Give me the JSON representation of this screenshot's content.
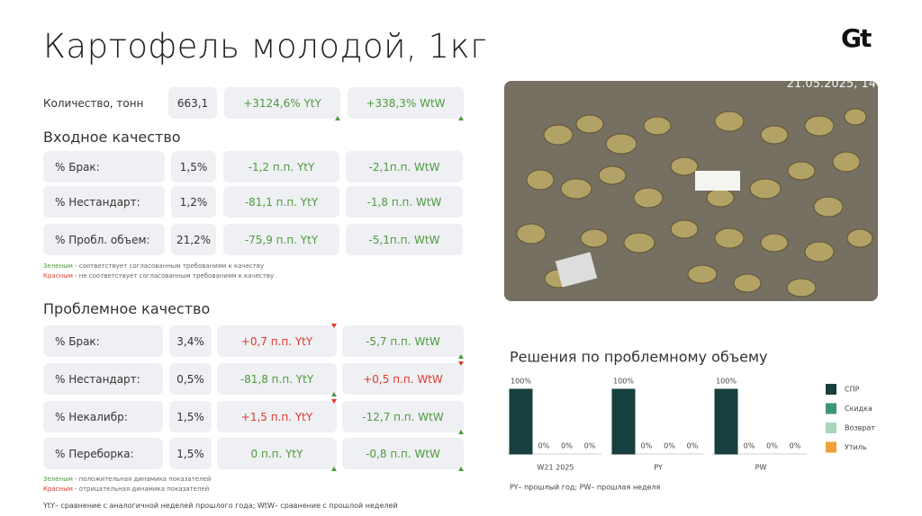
{
  "title": "Картофель молодой, 1кг",
  "logo": "Gt",
  "photo": {
    "timestamp": "21.05.2025, 14"
  },
  "quantity": {
    "label": "Количество, тонн",
    "value": "663,1",
    "yty": {
      "text": "+3124,6% YtY",
      "status": "good",
      "trend": "up"
    },
    "wtw": {
      "text": "+338,3% WtW",
      "status": "good",
      "trend": "up"
    }
  },
  "input_quality": {
    "title": "Входное качество",
    "rows": [
      {
        "label": "% Брак:",
        "value": "1,5%",
        "yty": {
          "text": "-1,2 п.п. YtY",
          "status": "good"
        },
        "wtw": {
          "text": "-2,1п.п. WtW",
          "status": "good"
        }
      },
      {
        "label": "% Нестандарт:",
        "value": "1,2%",
        "yty": {
          "text": "-81,1 п.п. YtY",
          "status": "good"
        },
        "wtw": {
          "text": "-1,8 п.п. WtW",
          "status": "good"
        }
      },
      {
        "label": "% Пробл. объем:",
        "value": "21,2%",
        "yty": {
          "text": "-75,9 п.п. YtY",
          "status": "good"
        },
        "wtw": {
          "text": "-5,1п.п. WtW",
          "status": "good"
        }
      }
    ],
    "legend": [
      {
        "key": "Зеленым",
        "status": "good",
        "text": "- соответствует согласованным требованиям к качеству"
      },
      {
        "key": "Красным",
        "status": "bad",
        "text": "- не соответствует согласованным требованиям к качеству"
      }
    ]
  },
  "problem_quality": {
    "title": "Проблемное качество",
    "rows": [
      {
        "label": "% Брак:",
        "value": "3,4%",
        "yty": {
          "text": "+0,7 п.п. YtY",
          "status": "bad",
          "trend": "down"
        },
        "wtw": {
          "text": "-5,7 п.п. WtW",
          "status": "good",
          "trend": "up"
        }
      },
      {
        "label": "% Нестандарт:",
        "value": "0,5%",
        "yty": {
          "text": "-81,8 п.п. YtY",
          "status": "good",
          "trend": "up"
        },
        "wtw": {
          "text": "+0,5 п.п. WtW",
          "status": "bad",
          "trend": "down"
        }
      },
      {
        "label": "% Некалибр:",
        "value": "1,5%",
        "yty": {
          "text": "+1,5 п.п. YtY",
          "status": "bad",
          "trend": "down"
        },
        "wtw": {
          "text": "-12,7 п.п. WtW",
          "status": "good",
          "trend": "up"
        }
      },
      {
        "label": "% Переборка:",
        "value": "1,5%",
        "yty": {
          "text": "0 п.п. YtY",
          "status": "good",
          "trend": "up"
        },
        "wtw": {
          "text": "-0,8 п.п. WtW",
          "status": "good",
          "trend": "up"
        }
      }
    ],
    "legend": [
      {
        "key": "Зеленым",
        "status": "good",
        "text": "- положительная динамика показателей"
      },
      {
        "key": "Красным",
        "status": "bad",
        "text": "- отрицательная динамика показателей"
      }
    ]
  },
  "status_colors": {
    "good": "#4e9a3e",
    "bad": "#e0382c"
  },
  "footnote": "YtY– сравнение с аналогичной неделей прошлого года; WtW– сравнение с прошлой неделей",
  "chart_data": {
    "type": "bar",
    "title": "Решения по проблемному объему",
    "categories": [
      "W21 2025",
      "PY",
      "PW"
    ],
    "series": [
      {
        "name": "СПР",
        "color": "#173f3f",
        "values": [
          100,
          100,
          100
        ],
        "value_labels": [
          "100%",
          "100%",
          "100%"
        ]
      },
      {
        "name": "Скидка",
        "color": "#3c9479",
        "values": [
          0,
          0,
          0
        ],
        "value_labels": [
          "0%",
          "0%",
          "0%"
        ]
      },
      {
        "name": "Возврат",
        "color": "#a9d6b9",
        "values": [
          0,
          0,
          0
        ],
        "value_labels": [
          "0%",
          "0%",
          "0%"
        ]
      },
      {
        "name": "Утиль",
        "color": "#eea03a",
        "values": [
          0,
          0,
          0
        ],
        "value_labels": [
          "0%",
          "0%",
          "0%"
        ]
      }
    ],
    "legend_position": "right",
    "note": "PY– прошлый год;  PW– прошлая неделя"
  }
}
